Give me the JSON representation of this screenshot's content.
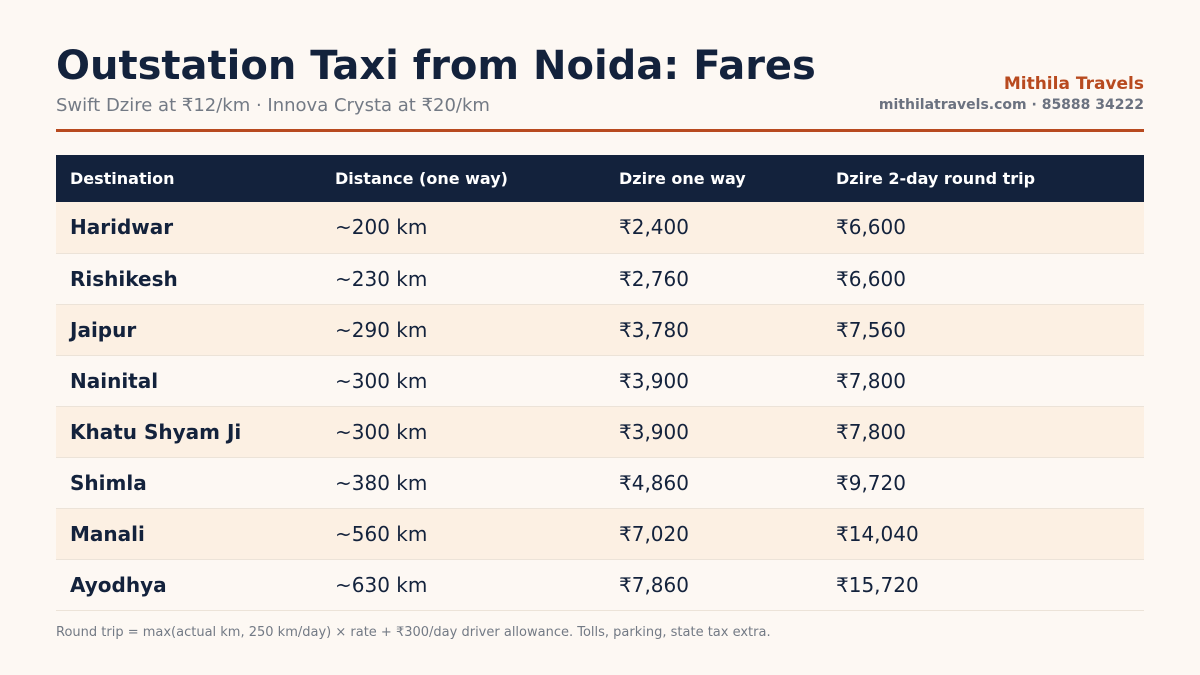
{
  "header": {
    "title": "Outstation Taxi from Noida: Fares",
    "subtitle": "Swift Dzire at ₹12/km · Innova Crysta at ₹20/km",
    "brand_name": "Mithila Travels",
    "brand_contact": "mithilatravels.com · 85888 34222",
    "accent_color": "#b84a1f",
    "header_bg_color": "#13223c"
  },
  "table": {
    "columns": [
      "Destination",
      "Distance (one way)",
      "Dzire one way",
      "Dzire 2-day round trip"
    ],
    "rows": [
      [
        "Haridwar",
        "~200 km",
        "₹2,400",
        "₹6,600"
      ],
      [
        "Rishikesh",
        "~230 km",
        "₹2,760",
        "₹6,600"
      ],
      [
        "Jaipur",
        "~290 km",
        "₹3,780",
        "₹7,560"
      ],
      [
        "Nainital",
        "~300 km",
        "₹3,900",
        "₹7,800"
      ],
      [
        "Khatu Shyam Ji",
        "~300 km",
        "₹3,900",
        "₹7,800"
      ],
      [
        "Shimla",
        "~380 km",
        "₹4,860",
        "₹9,720"
      ],
      [
        "Manali",
        "~560 km",
        "₹7,020",
        "₹14,040"
      ],
      [
        "Ayodhya",
        "~630 km",
        "₹7,860",
        "₹15,720"
      ]
    ]
  },
  "footnote": "Round trip = max(actual km, 250 km/day) × rate + ₹300/day driver allowance. Tolls, parking, state tax extra."
}
